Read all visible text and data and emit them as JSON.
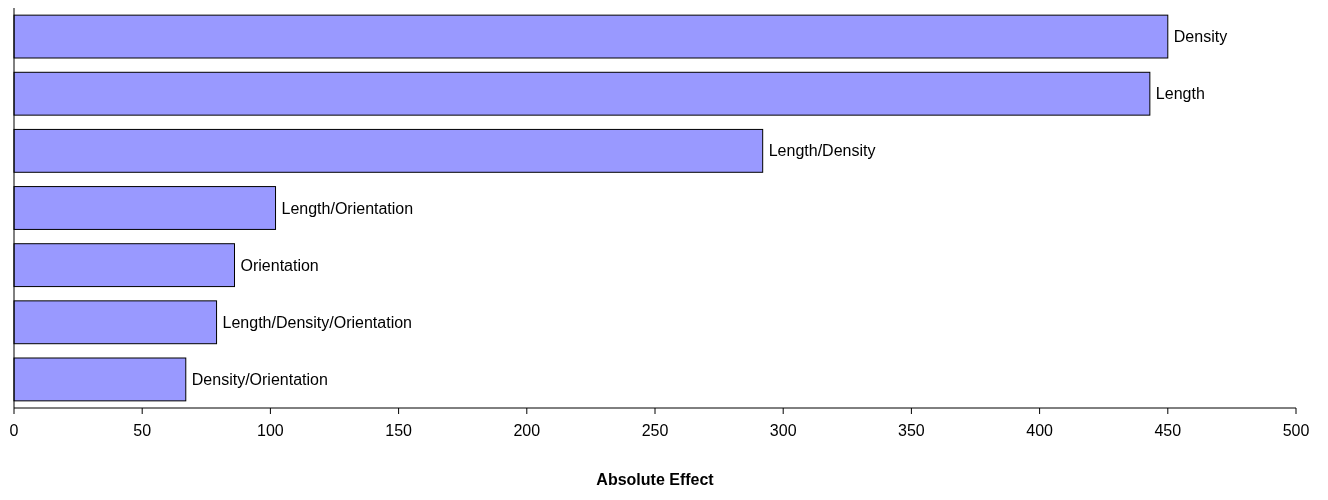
{
  "chart_data": {
    "type": "bar",
    "orientation": "horizontal",
    "xlabel": "Absolute Effect",
    "categories": [
      "Density",
      "Length",
      "Length/Density",
      "Length/Orientation",
      "Orientation",
      "Length/Density/Orientation",
      "Density/Orientation"
    ],
    "values": [
      450,
      443,
      292,
      102,
      86,
      79,
      67
    ],
    "color": "#9999ff",
    "xlim": [
      0,
      500
    ],
    "xticks": [
      0,
      50,
      100,
      150,
      200,
      250,
      300,
      350,
      400,
      450,
      500
    ],
    "grid": false
  }
}
